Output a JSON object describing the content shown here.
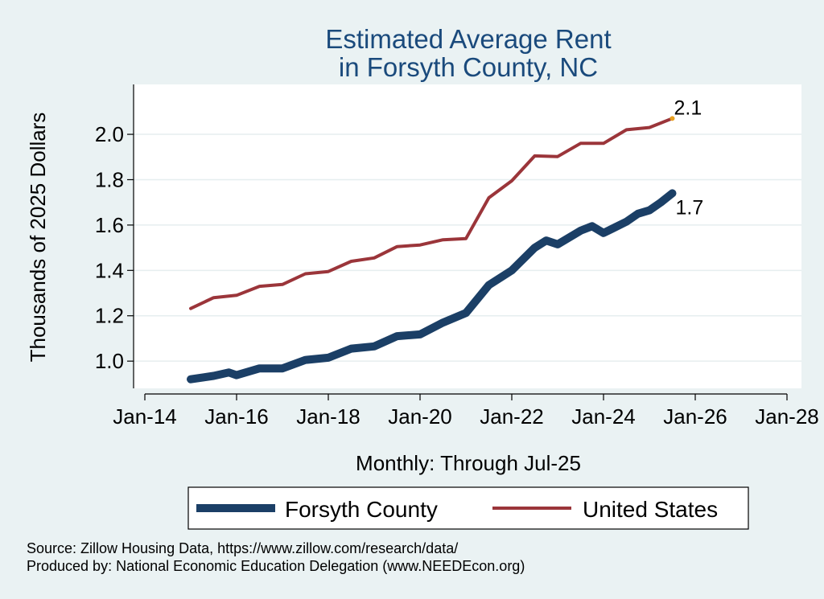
{
  "chart_data": {
    "type": "line",
    "title": [
      "Estimated Average Rent",
      "in Forsyth County, NC"
    ],
    "xlabel": "Monthly: Through Jul-25",
    "ylabel": "Thousands of 2025 Dollars",
    "x_range": [
      "2014-01",
      "2028-01"
    ],
    "x_ticks": [
      {
        "x": "2014-01",
        "label": "Jan-14"
      },
      {
        "x": "2016-01",
        "label": "Jan-16"
      },
      {
        "x": "2018-01",
        "label": "Jan-18"
      },
      {
        "x": "2020-01",
        "label": "Jan-20"
      },
      {
        "x": "2022-01",
        "label": "Jan-22"
      },
      {
        "x": "2024-01",
        "label": "Jan-24"
      },
      {
        "x": "2026-01",
        "label": "Jan-26"
      },
      {
        "x": "2028-01",
        "label": "Jan-28"
      }
    ],
    "ylim": [
      0.88,
      2.22
    ],
    "y_ticks": [
      {
        "y": 1.0,
        "label": "1.0"
      },
      {
        "y": 1.2,
        "label": "1.2"
      },
      {
        "y": 1.4,
        "label": "1.4"
      },
      {
        "y": 1.6,
        "label": "1.6"
      },
      {
        "y": 1.8,
        "label": "1.8"
      },
      {
        "y": 2.0,
        "label": "2.0"
      }
    ],
    "grid": "horizontal",
    "legend": "bottom",
    "series": [
      {
        "name": "Forsyth County",
        "color": "#1b3f66",
        "end_label": "1.7",
        "points": [
          [
            "2015-01",
            0.92
          ],
          [
            "2015-07",
            0.935
          ],
          [
            "2015-11",
            0.95
          ],
          [
            "2016-01",
            0.938
          ],
          [
            "2016-07",
            0.968
          ],
          [
            "2017-01",
            0.968
          ],
          [
            "2017-07",
            1.005
          ],
          [
            "2018-01",
            1.015
          ],
          [
            "2018-07",
            1.055
          ],
          [
            "2019-01",
            1.065
          ],
          [
            "2019-07",
            1.11
          ],
          [
            "2020-01",
            1.118
          ],
          [
            "2020-07",
            1.17
          ],
          [
            "2021-01",
            1.212
          ],
          [
            "2021-07",
            1.335
          ],
          [
            "2022-01",
            1.4
          ],
          [
            "2022-07",
            1.5
          ],
          [
            "2022-10",
            1.532
          ],
          [
            "2023-01",
            1.515
          ],
          [
            "2023-07",
            1.575
          ],
          [
            "2023-10",
            1.595
          ],
          [
            "2024-01",
            1.565
          ],
          [
            "2024-07",
            1.615
          ],
          [
            "2024-10",
            1.65
          ],
          [
            "2025-01",
            1.665
          ],
          [
            "2025-04",
            1.7
          ],
          [
            "2025-07",
            1.74
          ]
        ]
      },
      {
        "name": "United States",
        "color": "#9b353a",
        "end_label": "2.1",
        "points": [
          [
            "2015-01",
            1.232
          ],
          [
            "2015-07",
            1.28
          ],
          [
            "2016-01",
            1.29
          ],
          [
            "2016-07",
            1.33
          ],
          [
            "2017-01",
            1.338
          ],
          [
            "2017-07",
            1.385
          ],
          [
            "2018-01",
            1.395
          ],
          [
            "2018-07",
            1.44
          ],
          [
            "2019-01",
            1.455
          ],
          [
            "2019-07",
            1.505
          ],
          [
            "2020-01",
            1.512
          ],
          [
            "2020-07",
            1.535
          ],
          [
            "2021-01",
            1.54
          ],
          [
            "2021-07",
            1.72
          ],
          [
            "2022-01",
            1.795
          ],
          [
            "2022-07",
            1.905
          ],
          [
            "2023-01",
            1.902
          ],
          [
            "2023-07",
            1.96
          ],
          [
            "2024-01",
            1.96
          ],
          [
            "2024-07",
            2.02
          ],
          [
            "2025-01",
            2.03
          ],
          [
            "2025-07",
            2.07
          ]
        ]
      }
    ]
  },
  "footer": {
    "source": "Source: Zillow Housing Data, https://www.zillow.com/research/data/",
    "produced_by": "Produced by: National Economic Education Delegation (www.NEEDEcon.org)"
  }
}
